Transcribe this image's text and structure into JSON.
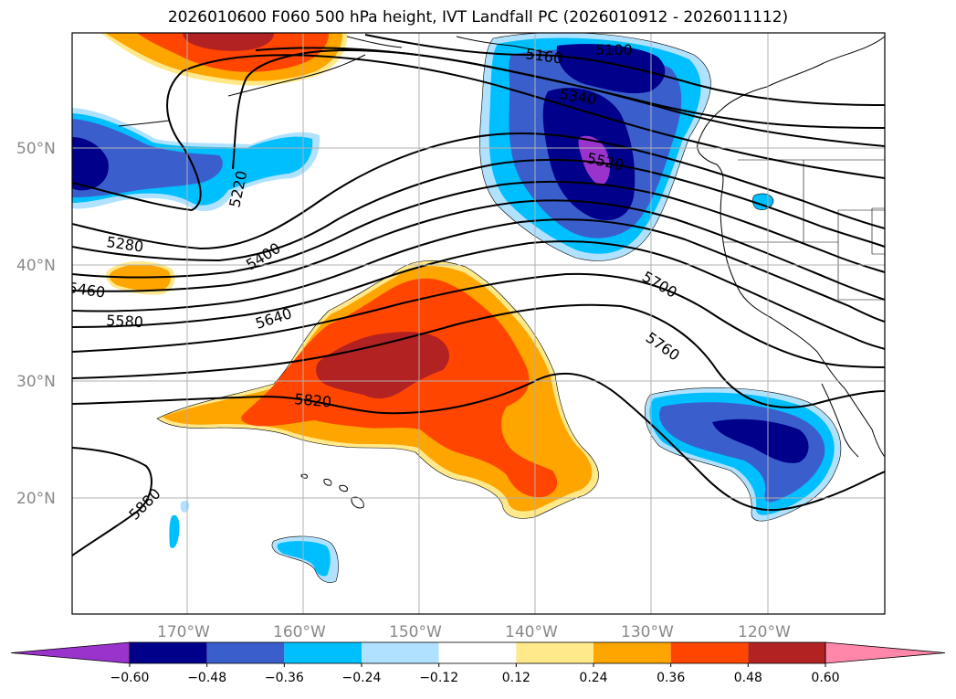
{
  "title": "2026010600 F060 500 hPa height, IVT Landfall PC (2026010912 - 2026011112)",
  "map": {
    "lat_labels": [
      "50°N",
      "40°N",
      "30°N",
      "20°N"
    ],
    "lon_labels": [
      "170°W",
      "160°W",
      "150°W",
      "140°W",
      "130°W",
      "120°W"
    ],
    "height_contour_labels": [
      "5160",
      "5100",
      "5340",
      "5520",
      "5220",
      "5280",
      "5400",
      "5460",
      "5580",
      "5640",
      "5700",
      "5760",
      "5820",
      "5880"
    ]
  },
  "colorbar": {
    "ticks": [
      "−0.60",
      "−0.48",
      "−0.36",
      "−0.24",
      "−0.12",
      "0.12",
      "0.24",
      "0.36",
      "0.48",
      "0.60"
    ],
    "colors": [
      "#9933cc",
      "#00008b",
      "#3a5fcd",
      "#00bfff",
      "#b0e2ff",
      "#ffffff",
      "#ffe98a",
      "#ffa500",
      "#ff4500",
      "#b22222",
      "#ff88aa"
    ]
  },
  "colors": {
    "negative_extreme": "#9933cc",
    "negative_strong": "#00008b",
    "negative_mid": "#3a5fcd",
    "negative_light": "#00bfff",
    "negative_faint": "#b0e2ff",
    "positive_faint": "#ffe98a",
    "positive_light": "#ffa500",
    "positive_mid": "#ff4500",
    "positive_strong": "#b22222",
    "positive_extreme": "#ff88aa"
  }
}
